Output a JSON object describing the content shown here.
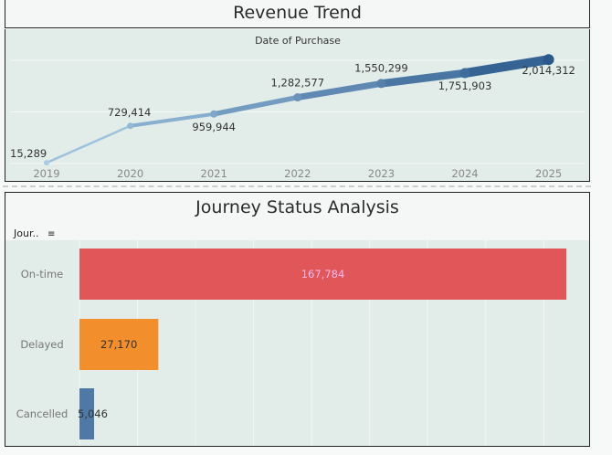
{
  "chart_data": [
    {
      "type": "line",
      "title": "Revenue Trend",
      "xlabel": "Date of Purchase",
      "ylabel": "",
      "x": [
        "2019",
        "2020",
        "2021",
        "2022",
        "2023",
        "2024",
        "2025"
      ],
      "values": [
        15289,
        729414,
        959944,
        1282577,
        1550299,
        1751903,
        2014312
      ],
      "data_labels": [
        "15,289",
        "729,414",
        "959,944",
        "1,282,577",
        "1,550,299",
        "1,751,903",
        "2,014,312"
      ],
      "ylim": [
        0,
        2100000
      ],
      "grid": true,
      "colors": {
        "low": "#a9cbe6",
        "high": "#2a5a8c"
      }
    },
    {
      "type": "bar",
      "orientation": "horizontal",
      "title": "Journey Status Analysis",
      "axis_header": "Jour..",
      "categories": [
        "On-time",
        "Delayed",
        "Cancelled"
      ],
      "values": [
        167784,
        27170,
        5046
      ],
      "data_labels": [
        "167,784",
        "27,170",
        "5,046"
      ],
      "colors": [
        "#e15759",
        "#f28e2b",
        "#4e79a7"
      ],
      "xlim": [
        0,
        180000
      ],
      "grid": true
    }
  ]
}
